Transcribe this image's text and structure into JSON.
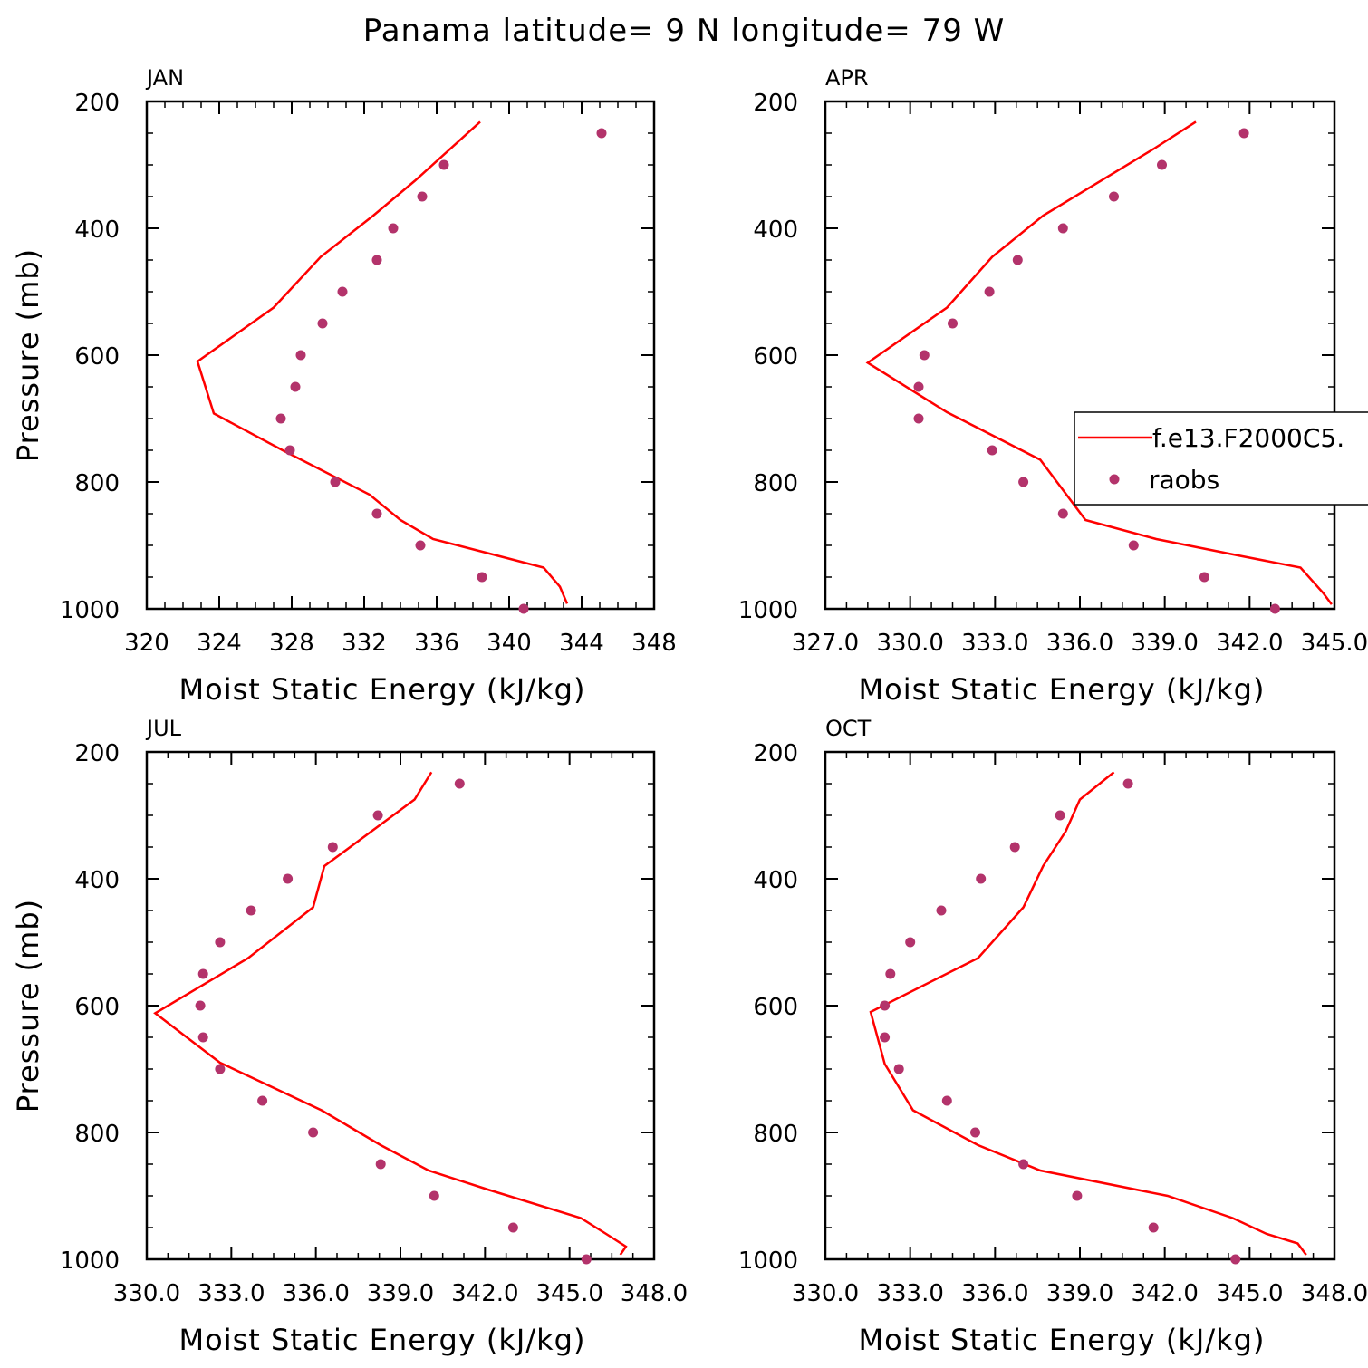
{
  "title": "Panama  latitude= 9 N longitude= 79 W",
  "legend": {
    "model_label": "f.e13.F2000C5.",
    "obs_label": "raobs"
  },
  "colors": {
    "model_line": "#ff0000",
    "obs_dots": "#b3336b",
    "axes": "#000000"
  },
  "chart_data": [
    {
      "type": "line",
      "panel": "JAN",
      "title": "JAN",
      "xlabel": "Moist Static Energy (kJ/kg)",
      "ylabel": "Pressure (mb)",
      "xlim": [
        320,
        348
      ],
      "ylim": [
        200,
        1000
      ],
      "y_inverted": true,
      "xticks": [
        "320",
        "324",
        "328",
        "332",
        "336",
        "340",
        "344",
        "348"
      ],
      "yticks": [
        "200",
        "400",
        "600",
        "800",
        "1000"
      ],
      "grid": false,
      "series": [
        {
          "name": "f.e13.F2000C5.",
          "style": "line",
          "x": [
            338.4,
            334.8,
            332.5,
            329.6,
            327.0,
            322.8,
            323.7,
            327.5,
            332.3,
            334.0,
            335.8,
            339.2,
            341.9,
            342.8,
            343.2
          ],
          "y": [
            232,
            325,
            380,
            445,
            525,
            610,
            692,
            750,
            820,
            860,
            890,
            915,
            935,
            965,
            992
          ]
        },
        {
          "name": "raobs",
          "style": "markers",
          "x": [
            345.1,
            336.4,
            335.2,
            333.6,
            332.7,
            330.8,
            329.7,
            328.5,
            328.2,
            327.4,
            327.9,
            330.4,
            332.7,
            335.1,
            338.5,
            340.8
          ],
          "y": [
            250,
            300,
            350,
            400,
            450,
            500,
            550,
            600,
            650,
            700,
            750,
            800,
            850,
            900,
            950,
            1000
          ]
        }
      ]
    },
    {
      "type": "line",
      "panel": "APR",
      "title": "APR",
      "xlabel": "Moist Static Energy (kJ/kg)",
      "ylabel": "",
      "xlim": [
        327,
        345
      ],
      "ylim": [
        200,
        1000
      ],
      "y_inverted": true,
      "xticks": [
        "327.0",
        "330.0",
        "333.0",
        "336.0",
        "339.0",
        "342.0",
        "345.0"
      ],
      "yticks": [
        "200",
        "400",
        "600",
        "800",
        "1000"
      ],
      "grid": false,
      "series": [
        {
          "name": "f.e13.F2000C5.",
          "style": "line",
          "x": [
            340.1,
            338.6,
            334.7,
            332.9,
            331.3,
            328.5,
            331.3,
            334.6,
            336.2,
            338.7,
            341.5,
            343.8,
            344.6,
            344.9
          ],
          "y": [
            232,
            275,
            380,
            445,
            525,
            612,
            690,
            765,
            860,
            890,
            915,
            935,
            975,
            993
          ]
        },
        {
          "name": "raobs",
          "style": "markers",
          "x": [
            341.8,
            338.9,
            337.2,
            335.4,
            333.8,
            332.8,
            331.5,
            330.5,
            330.3,
            330.3,
            332.9,
            334.0,
            335.4,
            337.9,
            340.4,
            342.9
          ],
          "y": [
            250,
            300,
            350,
            400,
            450,
            500,
            550,
            600,
            650,
            700,
            750,
            800,
            850,
            900,
            950,
            1000
          ]
        }
      ]
    },
    {
      "type": "line",
      "panel": "JUL",
      "title": "JUL",
      "xlabel": "Moist Static Energy (kJ/kg)",
      "ylabel": "Pressure (mb)",
      "xlim": [
        330,
        348
      ],
      "ylim": [
        200,
        1000
      ],
      "y_inverted": true,
      "xticks": [
        "330.0",
        "333.0",
        "336.0",
        "339.0",
        "342.0",
        "345.0",
        "348.0"
      ],
      "yticks": [
        "200",
        "400",
        "600",
        "800",
        "1000"
      ],
      "grid": false,
      "series": [
        {
          "name": "f.e13.F2000C5.",
          "style": "line",
          "x": [
            340.1,
            339.5,
            336.3,
            335.9,
            333.6,
            330.3,
            332.6,
            336.2,
            338.3,
            340.0,
            342.1,
            345.4,
            346.3,
            347.0,
            346.8
          ],
          "y": [
            232,
            275,
            380,
            445,
            525,
            612,
            690,
            765,
            820,
            860,
            890,
            935,
            960,
            980,
            993
          ]
        },
        {
          "name": "raobs",
          "style": "markers",
          "x": [
            341.1,
            338.2,
            336.6,
            335.0,
            333.7,
            332.6,
            332.0,
            331.9,
            332.0,
            332.6,
            334.1,
            335.9,
            338.3,
            340.2,
            343.0,
            345.6
          ],
          "y": [
            250,
            300,
            350,
            400,
            450,
            500,
            550,
            600,
            650,
            700,
            750,
            800,
            850,
            900,
            950,
            1000
          ]
        }
      ]
    },
    {
      "type": "line",
      "panel": "OCT",
      "title": "OCT",
      "xlabel": "Moist Static Energy (kJ/kg)",
      "ylabel": "",
      "xlim": [
        330,
        348
      ],
      "ylim": [
        200,
        1000
      ],
      "y_inverted": true,
      "xticks": [
        "330.0",
        "333.0",
        "336.0",
        "339.0",
        "342.0",
        "345.0",
        "348.0"
      ],
      "yticks": [
        "200",
        "400",
        "600",
        "800",
        "1000"
      ],
      "grid": false,
      "series": [
        {
          "name": "f.e13.F2000C5.",
          "style": "line",
          "x": [
            340.2,
            339.0,
            338.5,
            337.7,
            337.0,
            335.4,
            331.6,
            332.1,
            333.1,
            335.4,
            337.6,
            342.1,
            344.4,
            345.6,
            346.7,
            347.0
          ],
          "y": [
            232,
            275,
            325,
            380,
            445,
            525,
            610,
            692,
            765,
            820,
            860,
            900,
            935,
            960,
            975,
            993
          ]
        },
        {
          "name": "raobs",
          "style": "markers",
          "x": [
            340.7,
            338.3,
            336.7,
            335.5,
            334.1,
            333.0,
            332.3,
            332.1,
            332.1,
            332.6,
            334.3,
            335.3,
            337.0,
            338.9,
            341.6,
            344.5
          ],
          "y": [
            250,
            300,
            350,
            400,
            450,
            500,
            550,
            600,
            650,
            700,
            750,
            800,
            850,
            900,
            950,
            1000
          ]
        }
      ]
    }
  ]
}
